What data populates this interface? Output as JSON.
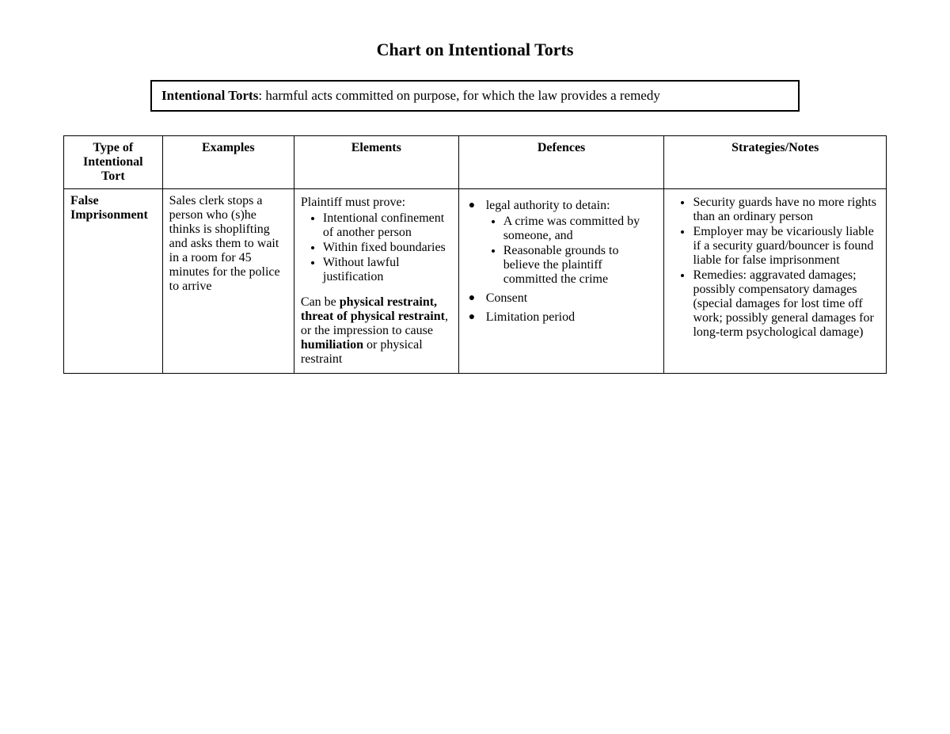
{
  "title": "Chart on Intentional Torts",
  "definition": {
    "term": "Intentional Torts",
    "text": ": harmful acts committed on purpose, for which the law provides a remedy"
  },
  "table": {
    "columns": {
      "type": "Type of Intentional Tort",
      "examples": "Examples",
      "elements": "Elements",
      "defences": "Defences",
      "strategies": "Strategies/Notes"
    },
    "row": {
      "type": "False Imprisonment",
      "examples": "Sales clerk stops a person who (s)he thinks is shoplifting and asks them to wait in a room for 45 minutes for the police to arrive",
      "elements": {
        "intro": "Plaintiff must prove:",
        "bullets": [
          "Intentional confinement of another person",
          "Within fixed boundaries",
          "Without lawful justification"
        ],
        "para_prefix": "Can be ",
        "bold1": "physical restraint, threat of physical restraint",
        "mid": ", or the impression to cause ",
        "bold2": "humiliation",
        "suffix": " or physical restraint"
      },
      "defences": {
        "item1": "legal authority to detain:",
        "sub1": "A crime was committed by someone, and",
        "sub2": "Reasonable grounds to believe the plaintiff committed the crime",
        "item2": "Consent",
        "item3": "Limitation period"
      },
      "strategies": [
        "Security guards have no more rights than an ordinary person",
        "Employer may be vicariously liable if a security guard/bouncer is found liable for false imprisonment",
        "Remedies: aggravated damages; possibly compensatory damages (special damages for lost time off work; possibly general damages for long-term psychological damage)"
      ]
    }
  }
}
